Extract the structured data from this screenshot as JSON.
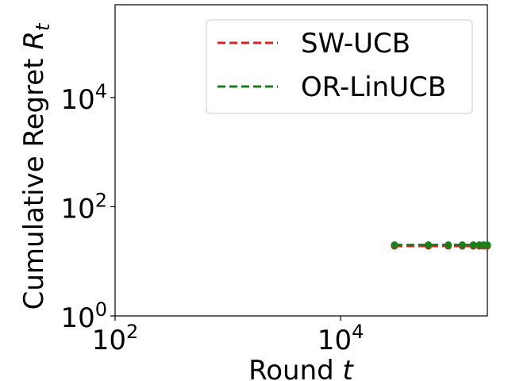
{
  "chart_data": {
    "type": "line",
    "xlabel": "Round t",
    "ylabel": "Cumulative Regret R_t",
    "xscale": "log",
    "yscale": "log",
    "xlim": [
      100,
      200000
    ],
    "ylim": [
      1,
      500000
    ],
    "x_ticks": [
      {
        "value": 100,
        "base": "10",
        "exp": "2"
      },
      {
        "value": 10000,
        "base": "10",
        "exp": "4"
      }
    ],
    "y_ticks": [
      {
        "value": 1,
        "base": "10",
        "exp": "0"
      },
      {
        "value": 100,
        "base": "10",
        "exp": "2"
      },
      {
        "value": 10000,
        "base": "10",
        "exp": "4"
      }
    ],
    "legend": "top-right",
    "series": [
      {
        "name": "SW-UCB",
        "color": "#d62728",
        "line_style": "dashed",
        "marker": "circle",
        "x": [
          30000,
          60000,
          90000,
          120000,
          150000,
          170000,
          185000,
          200000
        ],
        "y": [
          19,
          19,
          19,
          19,
          19,
          19,
          19,
          19
        ]
      },
      {
        "name": "OR-LinUCB",
        "color": "#1a7f1a",
        "line_style": "dashed",
        "marker": "circle",
        "x": [
          30000,
          60000,
          90000,
          120000,
          150000,
          170000,
          185000,
          200000
        ],
        "y": [
          20,
          20,
          20,
          20,
          20,
          20,
          20,
          20
        ]
      }
    ]
  }
}
